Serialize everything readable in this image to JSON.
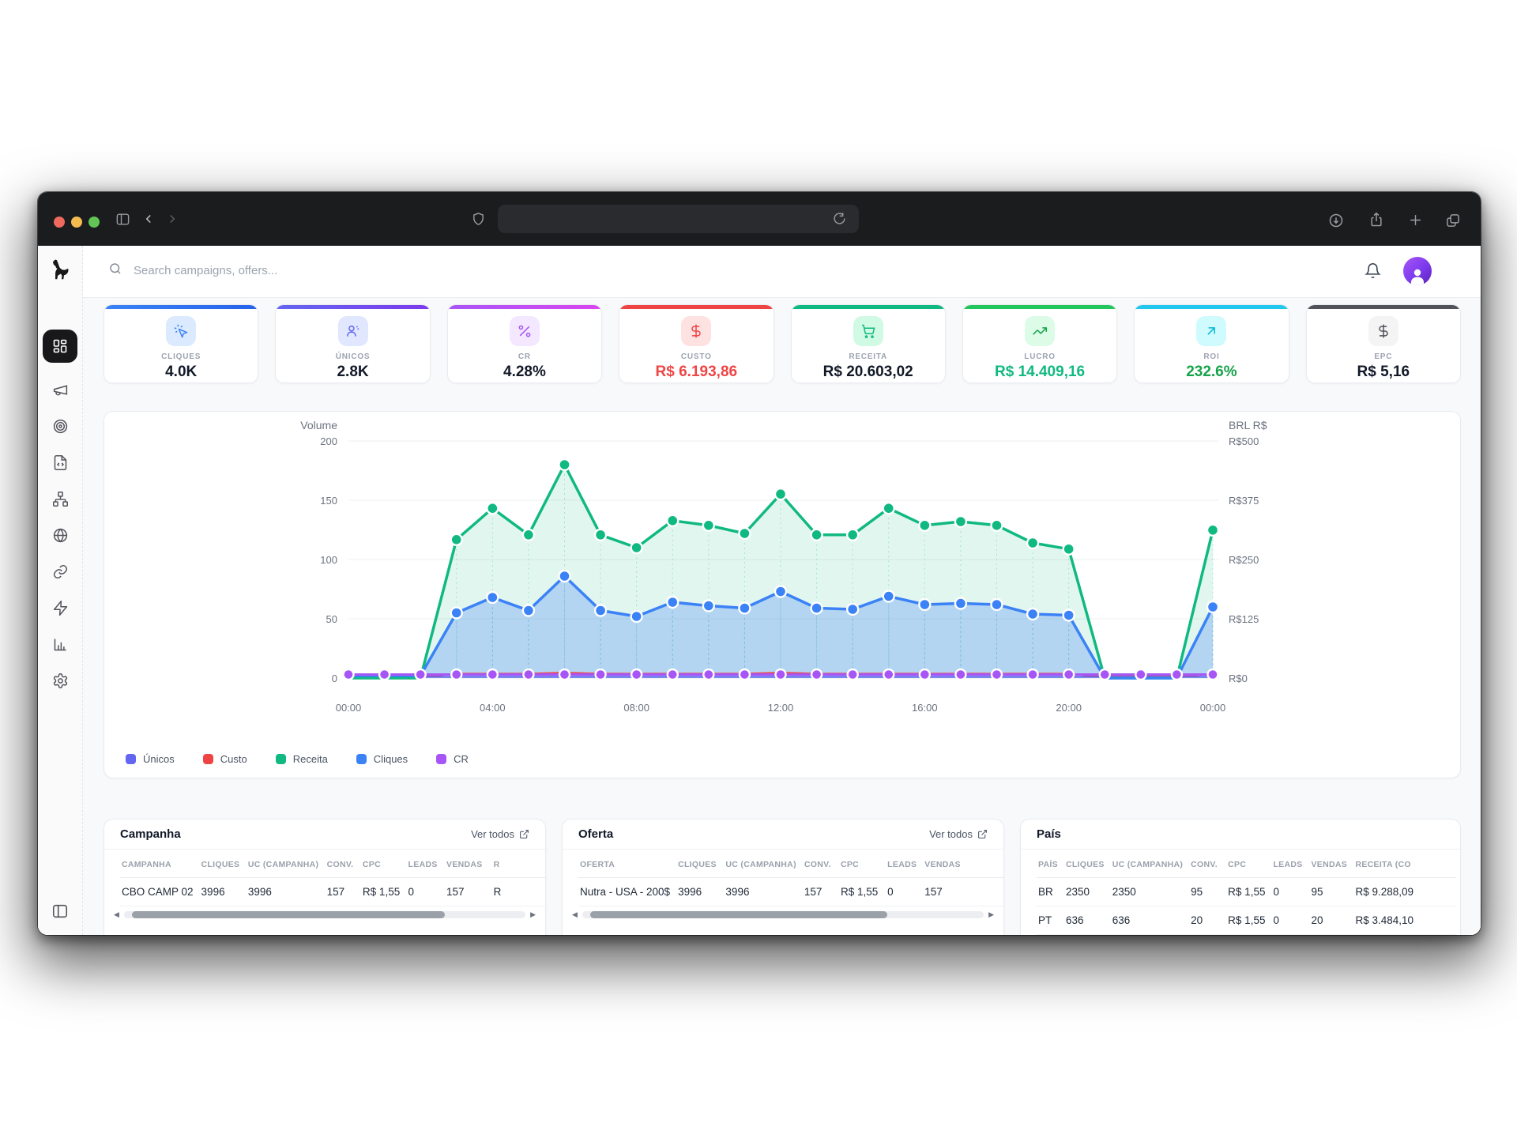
{
  "browser": {
    "traffic_lights": [
      "close",
      "minimize",
      "zoom"
    ],
    "url_value": "",
    "toolbar_icons": [
      "sidebar-toggle",
      "back",
      "forward",
      "shield",
      "reload",
      "download",
      "share",
      "new-tab",
      "tab-overview"
    ]
  },
  "topbar": {
    "search_placeholder": "Search campaigns, offers...",
    "icons": [
      "search",
      "bell",
      "avatar"
    ]
  },
  "sidebar": {
    "logo_icon": "dog-logo",
    "icons": [
      "grid-dashboard",
      "megaphone",
      "target",
      "file-code",
      "network",
      "globe",
      "link",
      "zap",
      "bar-chart",
      "gear"
    ],
    "active_index": 0,
    "bottom_icon": "panel-left-collapse"
  },
  "kpi_cards": [
    {
      "label": "CLIQUES",
      "value": "4.0K",
      "icon": "cursor-click-icon",
      "accent": "#3b82f6",
      "accent2": "#2563eb",
      "chip_bg": "#dbeafe",
      "chip_fg": "#3b82f6",
      "value_color": "#111827"
    },
    {
      "label": "ÚNICOS",
      "value": "2.8K",
      "icon": "users-icon",
      "accent": "#6366f1",
      "accent2": "#7c3aed",
      "chip_bg": "#e0e7ff",
      "chip_fg": "#6366f1",
      "value_color": "#111827"
    },
    {
      "label": "CR",
      "value": "4.28%",
      "icon": "percent-icon",
      "accent": "#a855f7",
      "accent2": "#d946ef",
      "chip_bg": "#f3e8ff",
      "chip_fg": "#a855f7",
      "value_color": "#111827"
    },
    {
      "label": "CUSTO",
      "value": "R$ 6.193,86",
      "icon": "dollar-icon",
      "accent": "#ef4444",
      "accent2": "#ef4444",
      "chip_bg": "#fee2e2",
      "chip_fg": "#ef4444",
      "value_color": "#ef4444"
    },
    {
      "label": "RECEITA",
      "value": "R$ 20.603,02",
      "icon": "cart-icon",
      "accent": "#10b981",
      "accent2": "#10b981",
      "chip_bg": "#d1fae5",
      "chip_fg": "#10b981",
      "value_color": "#111827"
    },
    {
      "label": "LUCRO",
      "value": "R$ 14.409,16",
      "icon": "trending-up-icon",
      "accent": "#22c55e",
      "accent2": "#22c55e",
      "chip_bg": "#dcfce7",
      "chip_fg": "#16a34a",
      "value_color": "#10b981"
    },
    {
      "label": "ROI",
      "value": "232.6%",
      "icon": "arrow-up-right-icon",
      "accent": "#22c7ee",
      "accent2": "#22c7ee",
      "chip_bg": "#cffafe",
      "chip_fg": "#06b6d4",
      "value_color": "#16a34a"
    },
    {
      "label": "EPC",
      "value": "R$ 5,16",
      "icon": "dollar-icon",
      "accent": "#52525b",
      "accent2": "#52525b",
      "chip_bg": "#f4f4f5",
      "chip_fg": "#52525b",
      "value_color": "#111827"
    }
  ],
  "chart_data": {
    "type": "area",
    "left_axis": {
      "title": "Volume",
      "ticks": [
        0,
        50,
        100,
        150,
        200
      ],
      "max": 200
    },
    "right_axis": {
      "title": "BRL R$",
      "ticks": [
        "R$0",
        "R$125",
        "R$250",
        "R$375",
        "R$500"
      ],
      "per_volume": 2.5
    },
    "x_ticks": [
      {
        "hour": 0,
        "label": "00:00"
      },
      {
        "hour": 4,
        "label": "04:00"
      },
      {
        "hour": 8,
        "label": "08:00"
      },
      {
        "hour": 12,
        "label": "12:00"
      },
      {
        "hour": 16,
        "label": "16:00"
      },
      {
        "hour": 20,
        "label": "20:00"
      },
      {
        "hour": 24,
        "label": "00:00"
      }
    ],
    "grid": true,
    "legend_position": "bottom-left",
    "series": [
      {
        "name": "Únicos",
        "color": "#6366f1",
        "axis": "volume",
        "values": [
          1,
          1,
          1,
          1,
          1,
          1,
          1,
          1,
          1,
          1,
          1,
          1,
          1,
          1,
          1,
          1,
          1,
          1,
          1,
          1,
          1,
          1,
          1,
          1,
          1
        ]
      },
      {
        "name": "Custo",
        "color": "#ef4444",
        "axis": "brl",
        "values": [
          3,
          3,
          3,
          9,
          9,
          9,
          11,
          9,
          9,
          9,
          9,
          9,
          11,
          9,
          9,
          9,
          9,
          9,
          9,
          9,
          9,
          3,
          3,
          3,
          9
        ]
      },
      {
        "name": "Receita",
        "color": "#10b981",
        "axis": "brl",
        "fill": "rgba(16,185,129,0.12)",
        "values": [
          0,
          0,
          0,
          292,
          358,
          302,
          450,
          302,
          275,
          332,
          322,
          305,
          388,
          302,
          302,
          358,
          322,
          330,
          322,
          285,
          272,
          0,
          0,
          0,
          312
        ]
      },
      {
        "name": "Cliques",
        "color": "#3b82f6",
        "axis": "volume",
        "fill": "rgba(59,130,246,0.28)",
        "values": [
          2,
          2,
          2,
          55,
          68,
          57,
          86,
          57,
          52,
          64,
          61,
          59,
          73,
          59,
          58,
          69,
          62,
          63,
          62,
          54,
          53,
          0,
          0,
          0,
          60
        ]
      },
      {
        "name": "CR",
        "color": "#a855f7",
        "axis": "volume",
        "values": [
          3,
          3,
          3,
          3,
          3,
          3,
          3,
          3,
          3,
          3,
          3,
          3,
          3,
          3,
          3,
          3,
          3,
          3,
          3,
          3,
          3,
          3,
          3,
          3,
          3
        ]
      }
    ]
  },
  "tables": {
    "campanha": {
      "title": "Campanha",
      "link": "Ver todos",
      "columns": [
        "CAMPANHA",
        "CLIQUES",
        "UC (CAMPANHA)",
        "CONV.",
        "CPC",
        "LEADS",
        "VENDAS",
        "R"
      ],
      "rows": [
        [
          "CBO CAMP 02",
          "3996",
          "3996",
          "157",
          "R$ 1,55",
          "0",
          "157",
          "R"
        ]
      ]
    },
    "oferta": {
      "title": "Oferta",
      "link": "Ver todos",
      "columns": [
        "OFERTA",
        "CLIQUES",
        "UC (CAMPANHA)",
        "CONV.",
        "CPC",
        "LEADS",
        "VENDAS"
      ],
      "rows": [
        [
          "Nutra - USA - 200$",
          "3996",
          "3996",
          "157",
          "R$ 1,55",
          "0",
          "157"
        ]
      ]
    },
    "pais": {
      "title": "País",
      "columns": [
        "PAÍS",
        "CLIQUES",
        "UC (CAMPANHA)",
        "CONV.",
        "CPC",
        "LEADS",
        "VENDAS",
        "RECEITA (CO"
      ],
      "rows": [
        [
          "BR",
          "2350",
          "2350",
          "95",
          "R$ 1,55",
          "0",
          "95",
          "R$ 9.288,09"
        ],
        [
          "PT",
          "636",
          "636",
          "20",
          "R$ 1,55",
          "0",
          "20",
          "R$ 3.484,10"
        ]
      ]
    }
  }
}
